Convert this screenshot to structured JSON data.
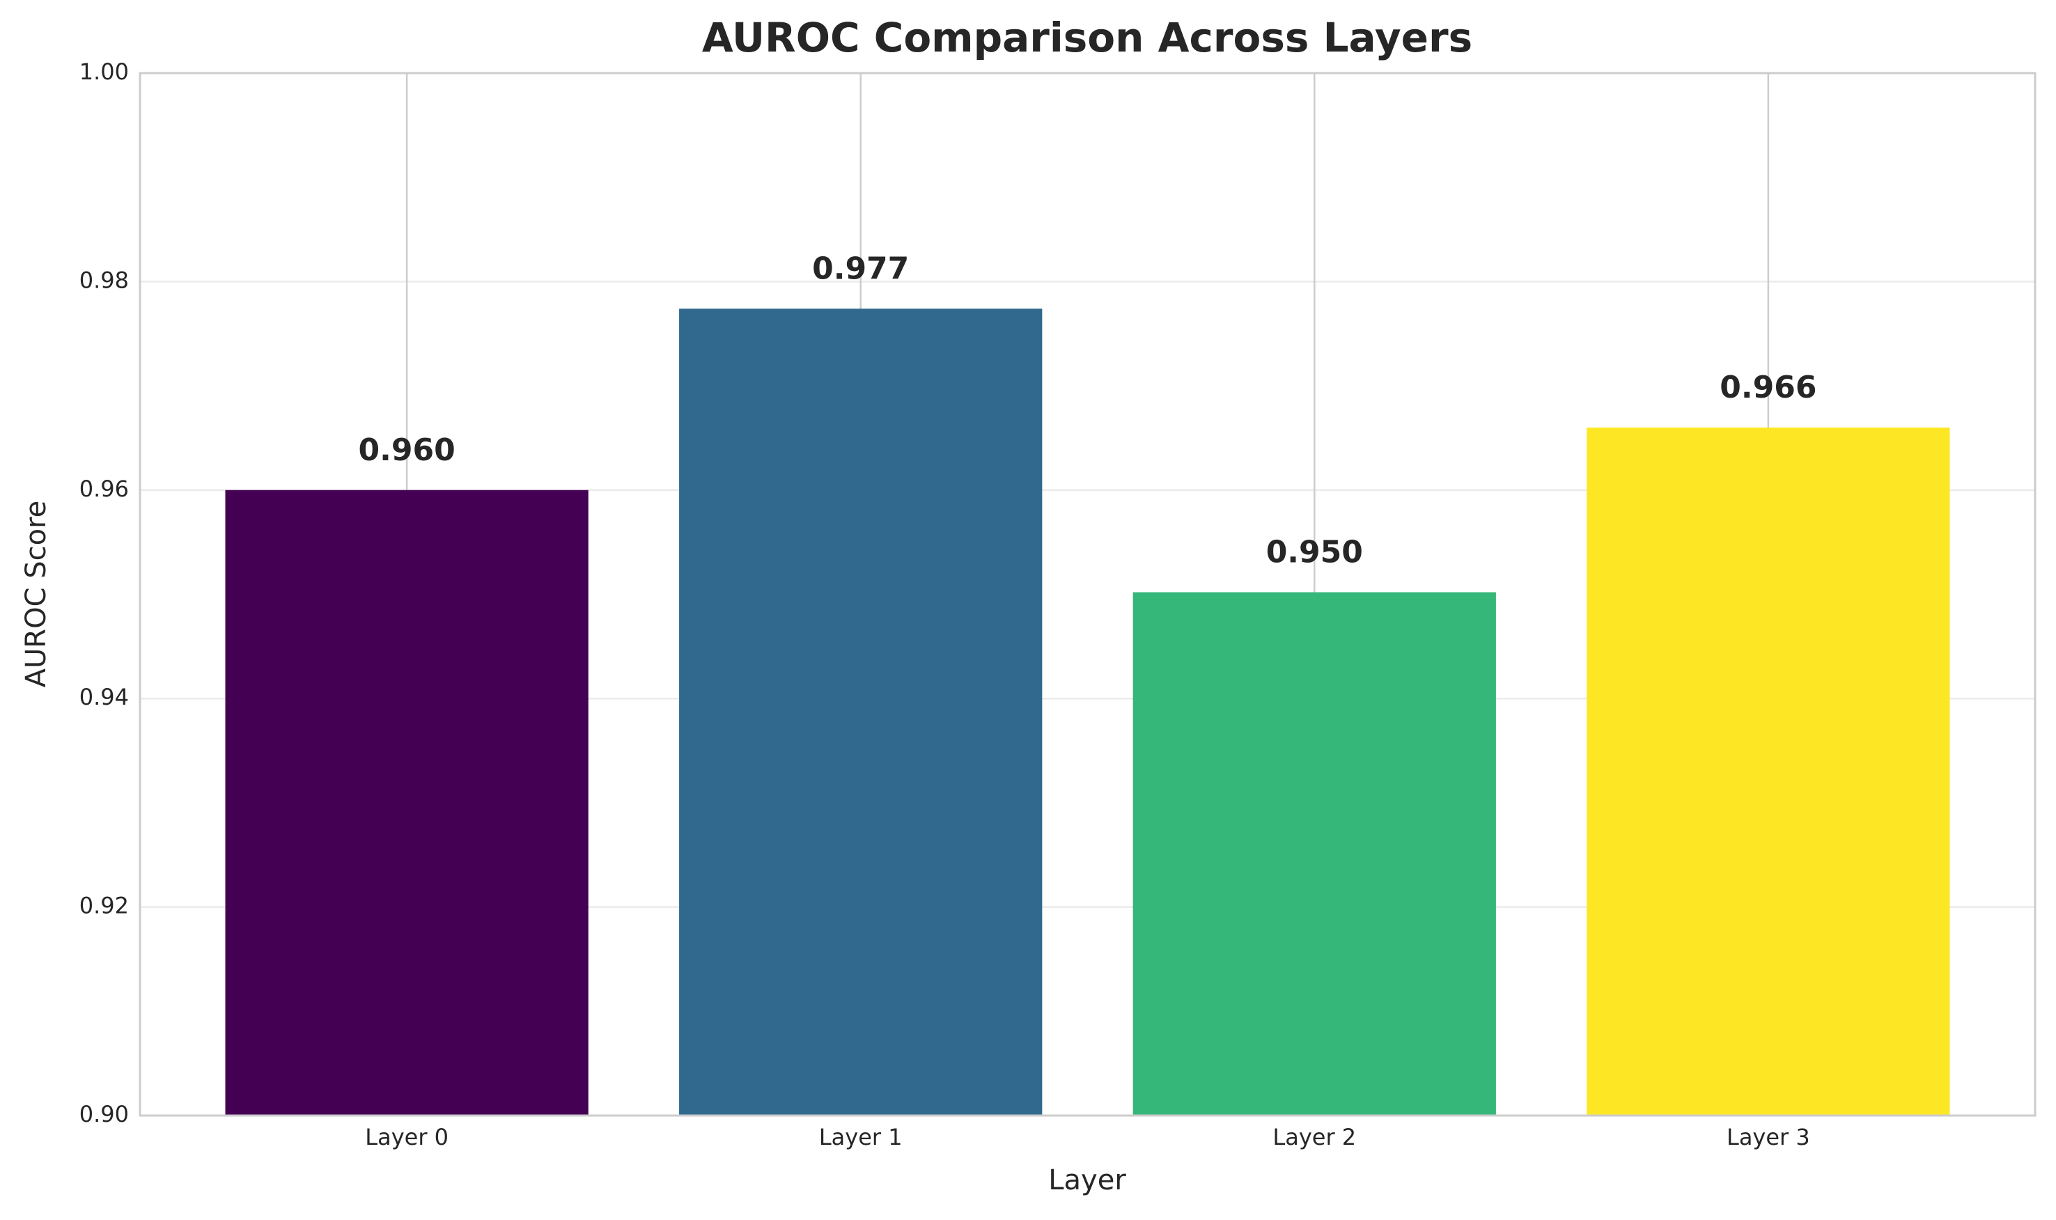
{
  "chart_data": {
    "type": "bar",
    "title": "AUROC Comparison Across Layers",
    "x_label": "Layer",
    "y_label": "AUROC Score",
    "categories": [
      "Layer 0",
      "Layer 1",
      "Layer 2",
      "Layer 3"
    ],
    "values": [
      0.96,
      0.9774,
      0.9502,
      0.966
    ],
    "value_labels": [
      "0.960",
      "0.977",
      "0.950",
      "0.966"
    ],
    "colors": [
      "#440154",
      "#31688e",
      "#35b779",
      "#fde725"
    ],
    "ylim": [
      0.9,
      1.0
    ],
    "yticks": [
      {
        "value": 0.9,
        "label": "0.90"
      },
      0.92,
      0.94,
      0.96,
      0.98,
      {
        "value": 1.0,
        "label": "1.00"
      }
    ],
    "grid": true
  }
}
